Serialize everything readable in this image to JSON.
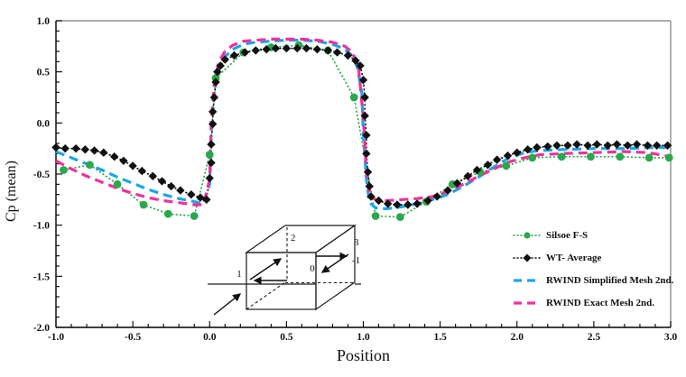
{
  "chart_data": {
    "type": "line",
    "xlabel": "Position",
    "ylabel": "Cp (mean)",
    "xlim": [
      -1.0,
      3.0
    ],
    "ylim": [
      -2.0,
      1.0
    ],
    "grid": false,
    "legend_position": "inside right, below center",
    "axis_color": "#000000",
    "frame_color": "#8f8f8f",
    "x_tick_values": [
      -1.0,
      -0.5,
      0.0,
      0.5,
      1.0,
      1.5,
      2.0,
      2.5,
      3.0
    ],
    "x_tick_labels": [
      "-1.0",
      "-0.5",
      "0.0",
      "0.5",
      "1.0",
      "1.5",
      "2.0",
      "2.5",
      "3.0"
    ],
    "x_minor_step": 0.1,
    "y_tick_values": [
      1.0,
      0.5,
      0.0,
      -0.5,
      -1.0,
      -1.5,
      -2.0
    ],
    "y_tick_labels": [
      "1.0",
      "0.5",
      "0.0",
      "-0.5",
      "-1.0",
      "-1.5",
      "-2.0"
    ],
    "y_minor_step": 0.1,
    "series": [
      {
        "name": "Silsoe F-S",
        "color": "#2aa84d",
        "line": "dot",
        "marker": "circle",
        "points": [
          [
            -0.95,
            -0.46
          ],
          [
            -0.78,
            -0.41
          ],
          [
            -0.6,
            -0.6
          ],
          [
            -0.43,
            -0.8
          ],
          [
            -0.27,
            -0.89
          ],
          [
            -0.1,
            -0.91
          ],
          [
            0.0,
            -0.31
          ],
          [
            0.04,
            0.44
          ],
          [
            0.22,
            0.69
          ],
          [
            0.4,
            0.74
          ],
          [
            0.58,
            0.76
          ],
          [
            0.77,
            0.71
          ],
          [
            0.94,
            0.25
          ],
          [
            1.08,
            -0.91
          ],
          [
            1.24,
            -0.92
          ],
          [
            1.41,
            -0.77
          ],
          [
            1.58,
            -0.6
          ],
          [
            1.76,
            -0.48
          ],
          [
            1.93,
            -0.42
          ],
          [
            2.1,
            -0.34
          ],
          [
            2.29,
            -0.33
          ],
          [
            2.48,
            -0.33
          ],
          [
            2.67,
            -0.33
          ],
          [
            2.86,
            -0.34
          ],
          [
            2.99,
            -0.34
          ]
        ]
      },
      {
        "name": "WT- Average",
        "color": "#111111",
        "line": "dot",
        "marker": "diamond",
        "points": [
          [
            -1.0,
            -0.24
          ],
          [
            -0.94,
            -0.25
          ],
          [
            -0.87,
            -0.25
          ],
          [
            -0.81,
            -0.26
          ],
          [
            -0.75,
            -0.27
          ],
          [
            -0.69,
            -0.29
          ],
          [
            -0.62,
            -0.33
          ],
          [
            -0.56,
            -0.37
          ],
          [
            -0.5,
            -0.42
          ],
          [
            -0.44,
            -0.47
          ],
          [
            -0.37,
            -0.52
          ],
          [
            -0.31,
            -0.57
          ],
          [
            -0.25,
            -0.62
          ],
          [
            -0.19,
            -0.66
          ],
          [
            -0.12,
            -0.7
          ],
          [
            -0.06,
            -0.73
          ],
          [
            -0.02,
            -0.75
          ],
          [
            0.0,
            -0.54
          ],
          [
            0.01,
            -0.39
          ],
          [
            0.01,
            -0.21
          ],
          [
            0.02,
            -0.01
          ],
          [
            0.02,
            0.11
          ],
          [
            0.03,
            0.25
          ],
          [
            0.04,
            0.4
          ],
          [
            0.05,
            0.5
          ],
          [
            0.07,
            0.56
          ],
          [
            0.1,
            0.62
          ],
          [
            0.16,
            0.66
          ],
          [
            0.23,
            0.69
          ],
          [
            0.3,
            0.71
          ],
          [
            0.37,
            0.72
          ],
          [
            0.43,
            0.73
          ],
          [
            0.5,
            0.73
          ],
          [
            0.57,
            0.73
          ],
          [
            0.63,
            0.73
          ],
          [
            0.7,
            0.72
          ],
          [
            0.77,
            0.71
          ],
          [
            0.83,
            0.69
          ],
          [
            0.9,
            0.66
          ],
          [
            0.95,
            0.61
          ],
          [
            0.98,
            0.56
          ],
          [
            1.0,
            0.42
          ],
          [
            1.01,
            0.25
          ],
          [
            1.01,
            0.07
          ],
          [
            1.02,
            -0.12
          ],
          [
            1.02,
            -0.3
          ],
          [
            1.03,
            -0.48
          ],
          [
            1.04,
            -0.62
          ],
          [
            1.05,
            -0.72
          ],
          [
            1.1,
            -0.76
          ],
          [
            1.16,
            -0.79
          ],
          [
            1.22,
            -0.8
          ],
          [
            1.29,
            -0.8
          ],
          [
            1.35,
            -0.79
          ],
          [
            1.42,
            -0.76
          ],
          [
            1.48,
            -0.72
          ],
          [
            1.55,
            -0.66
          ],
          [
            1.61,
            -0.59
          ],
          [
            1.68,
            -0.52
          ],
          [
            1.74,
            -0.46
          ],
          [
            1.81,
            -0.41
          ],
          [
            1.87,
            -0.36
          ],
          [
            1.94,
            -0.32
          ],
          [
            2.0,
            -0.29
          ],
          [
            2.07,
            -0.26
          ],
          [
            2.13,
            -0.24
          ],
          [
            2.2,
            -0.23
          ],
          [
            2.26,
            -0.22
          ],
          [
            2.33,
            -0.22
          ],
          [
            2.39,
            -0.21
          ],
          [
            2.46,
            -0.22
          ],
          [
            2.52,
            -0.21
          ],
          [
            2.59,
            -0.22
          ],
          [
            2.65,
            -0.21
          ],
          [
            2.72,
            -0.22
          ],
          [
            2.78,
            -0.21
          ],
          [
            2.85,
            -0.22
          ],
          [
            2.91,
            -0.22
          ],
          [
            2.98,
            -0.22
          ]
        ]
      },
      {
        "name": "RWIND Simplified Mesh 2nd.",
        "color": "#1ba6e6",
        "line": "dash",
        "marker": "none",
        "points": [
          [
            -1.0,
            -0.28
          ],
          [
            -0.9,
            -0.34
          ],
          [
            -0.8,
            -0.4
          ],
          [
            -0.7,
            -0.46
          ],
          [
            -0.6,
            -0.53
          ],
          [
            -0.5,
            -0.59
          ],
          [
            -0.4,
            -0.65
          ],
          [
            -0.3,
            -0.7
          ],
          [
            -0.2,
            -0.74
          ],
          [
            -0.1,
            -0.77
          ],
          [
            -0.04,
            -0.79
          ],
          [
            0.0,
            -0.6
          ],
          [
            0.01,
            -0.1
          ],
          [
            0.03,
            0.3
          ],
          [
            0.06,
            0.52
          ],
          [
            0.1,
            0.65
          ],
          [
            0.15,
            0.72
          ],
          [
            0.22,
            0.77
          ],
          [
            0.3,
            0.79
          ],
          [
            0.4,
            0.8
          ],
          [
            0.5,
            0.81
          ],
          [
            0.6,
            0.81
          ],
          [
            0.7,
            0.8
          ],
          [
            0.8,
            0.77
          ],
          [
            0.87,
            0.73
          ],
          [
            0.92,
            0.67
          ],
          [
            0.96,
            0.55
          ],
          [
            0.99,
            0.3
          ],
          [
            1.0,
            -0.1
          ],
          [
            1.02,
            -0.55
          ],
          [
            1.04,
            -0.78
          ],
          [
            1.08,
            -0.83
          ],
          [
            1.15,
            -0.84
          ],
          [
            1.25,
            -0.82
          ],
          [
            1.35,
            -0.79
          ],
          [
            1.45,
            -0.75
          ],
          [
            1.55,
            -0.7
          ],
          [
            1.65,
            -0.62
          ],
          [
            1.75,
            -0.53
          ],
          [
            1.85,
            -0.43
          ],
          [
            1.95,
            -0.34
          ],
          [
            2.05,
            -0.29
          ],
          [
            2.15,
            -0.27
          ],
          [
            2.3,
            -0.26
          ],
          [
            2.5,
            -0.25
          ],
          [
            2.7,
            -0.25
          ],
          [
            2.9,
            -0.24
          ],
          [
            3.0,
            -0.24
          ]
        ]
      },
      {
        "name": "RWIND Exact Mesh 2nd.",
        "color": "#f0319c",
        "line": "dash",
        "marker": "none",
        "points": [
          [
            -1.0,
            -0.37
          ],
          [
            -0.9,
            -0.45
          ],
          [
            -0.8,
            -0.52
          ],
          [
            -0.7,
            -0.58
          ],
          [
            -0.6,
            -0.64
          ],
          [
            -0.5,
            -0.69
          ],
          [
            -0.4,
            -0.73
          ],
          [
            -0.3,
            -0.76
          ],
          [
            -0.2,
            -0.78
          ],
          [
            -0.1,
            -0.8
          ],
          [
            -0.04,
            -0.8
          ],
          [
            0.0,
            -0.55
          ],
          [
            0.01,
            0.0
          ],
          [
            0.03,
            0.4
          ],
          [
            0.06,
            0.6
          ],
          [
            0.1,
            0.7
          ],
          [
            0.15,
            0.76
          ],
          [
            0.22,
            0.8
          ],
          [
            0.3,
            0.81
          ],
          [
            0.4,
            0.82
          ],
          [
            0.5,
            0.82
          ],
          [
            0.6,
            0.82
          ],
          [
            0.7,
            0.81
          ],
          [
            0.8,
            0.79
          ],
          [
            0.88,
            0.75
          ],
          [
            0.93,
            0.69
          ],
          [
            0.97,
            0.52
          ],
          [
            1.0,
            0.05
          ],
          [
            1.02,
            -0.48
          ],
          [
            1.04,
            -0.7
          ],
          [
            1.08,
            -0.75
          ],
          [
            1.15,
            -0.76
          ],
          [
            1.25,
            -0.75
          ],
          [
            1.35,
            -0.74
          ],
          [
            1.45,
            -0.72
          ],
          [
            1.55,
            -0.67
          ],
          [
            1.65,
            -0.6
          ],
          [
            1.75,
            -0.52
          ],
          [
            1.85,
            -0.45
          ],
          [
            1.95,
            -0.38
          ],
          [
            2.05,
            -0.34
          ],
          [
            2.15,
            -0.31
          ],
          [
            2.3,
            -0.3
          ],
          [
            2.5,
            -0.29
          ],
          [
            2.7,
            -0.28
          ],
          [
            2.85,
            -0.29
          ],
          [
            3.0,
            -0.33
          ]
        ]
      }
    ]
  },
  "inset": {
    "labels": {
      "pos1": "1",
      "pos2": "2",
      "pos3": "3",
      "pos0": "0",
      "neg1": "-1"
    }
  }
}
